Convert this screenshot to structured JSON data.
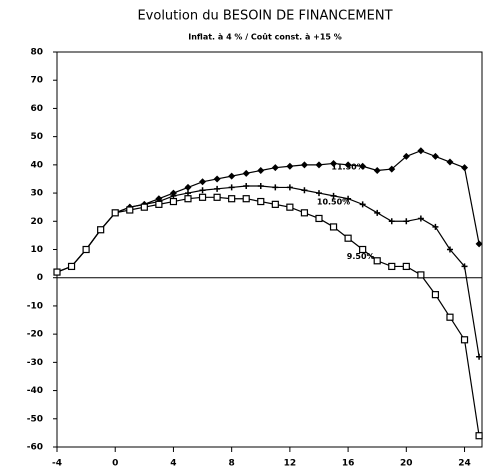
{
  "chart_data": {
    "type": "line",
    "title": "Evolution du BESOIN DE FINANCEMENT",
    "subtitle": "Inflat. à 4 % / Coût const. à +15 %",
    "x": [
      -4,
      -3,
      -2,
      -1,
      0,
      1,
      2,
      3,
      4,
      5,
      6,
      7,
      8,
      9,
      10,
      11,
      12,
      13,
      14,
      15,
      16,
      17,
      18,
      19,
      20,
      21,
      22,
      23,
      24,
      25
    ],
    "series": [
      {
        "name": "11.50%",
        "color": "#000000",
        "marker": "diamond",
        "values": [
          2,
          4,
          10,
          17,
          23,
          25,
          26,
          28,
          30,
          32,
          34,
          35,
          36,
          37,
          38,
          39,
          39.5,
          40,
          40,
          40.5,
          40,
          39.5,
          38,
          38.5,
          43,
          45,
          43,
          41,
          39,
          12
        ]
      },
      {
        "name": "10.50%",
        "color": "#000000",
        "marker": "plus",
        "values": [
          2,
          4,
          10,
          17,
          23,
          25,
          26,
          27,
          29,
          30,
          31,
          31.5,
          32,
          32.5,
          32.5,
          32,
          32,
          31,
          30,
          29,
          28,
          26,
          23,
          20,
          20,
          21,
          18,
          10,
          4,
          -28
        ]
      },
      {
        "name": "9.50%",
        "color": "#000000",
        "marker": "square",
        "values": [
          2,
          4,
          10,
          17,
          23,
          24,
          25,
          26,
          27,
          28,
          28.5,
          28.5,
          28,
          28,
          27,
          26,
          25,
          23,
          21,
          18,
          14,
          10,
          6,
          4,
          4,
          1,
          -6,
          -14,
          -22,
          -56
        ]
      }
    ],
    "xlim": [
      -4,
      25.2
    ],
    "ylim": [
      -60,
      80
    ],
    "xticks": [
      -4,
      0,
      4,
      8,
      12,
      16,
      20,
      24
    ],
    "yticks": [
      -60,
      -50,
      -40,
      -30,
      -20,
      -10,
      0,
      10,
      20,
      30,
      40,
      50,
      60,
      70,
      80
    ],
    "grid": false
  }
}
